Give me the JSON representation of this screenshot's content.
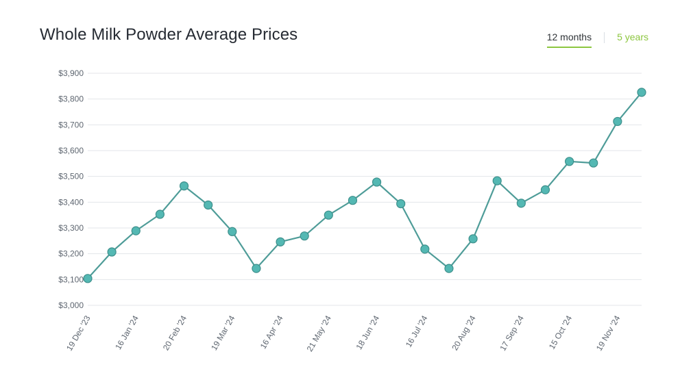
{
  "header": {
    "title": "Whole Milk Powder Average Prices"
  },
  "range_toggle": {
    "options": [
      "12 months",
      "5 years"
    ],
    "selected": "12 months"
  },
  "colors": {
    "line": "#4e9c98",
    "marker": "#54b8b3",
    "marker_stroke": "#3d8f8b",
    "grid": "#e3e6e9",
    "accent": "#8cc63f"
  },
  "chart_data": {
    "type": "line",
    "title": "Whole Milk Powder Average Prices",
    "xlabel": "",
    "ylabel": "",
    "ylim": [
      3000,
      3900
    ],
    "y_ticks": [
      3000,
      3100,
      3200,
      3300,
      3400,
      3500,
      3600,
      3700,
      3800,
      3900
    ],
    "y_tick_labels": [
      "$3,000",
      "$3,100",
      "$3,200",
      "$3,300",
      "$3,400",
      "$3,500",
      "$3,600",
      "$3,700",
      "$3,800",
      "$3,900"
    ],
    "x_tick_labels": [
      "19 Dec '23",
      "16 Jan '24",
      "20 Feb '24",
      "19 Mar '24",
      "16 Apr '24",
      "21 May '24",
      "18 Jun '24",
      "16 Jul '24",
      "20 Aug '24",
      "17 Sep '24",
      "15 Oct '24",
      "19 Nov '24"
    ],
    "grid": true,
    "series": [
      {
        "name": "Whole Milk Powder Average Price",
        "values": [
          3104,
          3207,
          3289,
          3353,
          3463,
          3389,
          3286,
          3143,
          3246,
          3269,
          3350,
          3407,
          3478,
          3394,
          3218,
          3143,
          3258,
          3483,
          3396,
          3448,
          3558,
          3552,
          3713,
          3826
        ]
      }
    ]
  }
}
